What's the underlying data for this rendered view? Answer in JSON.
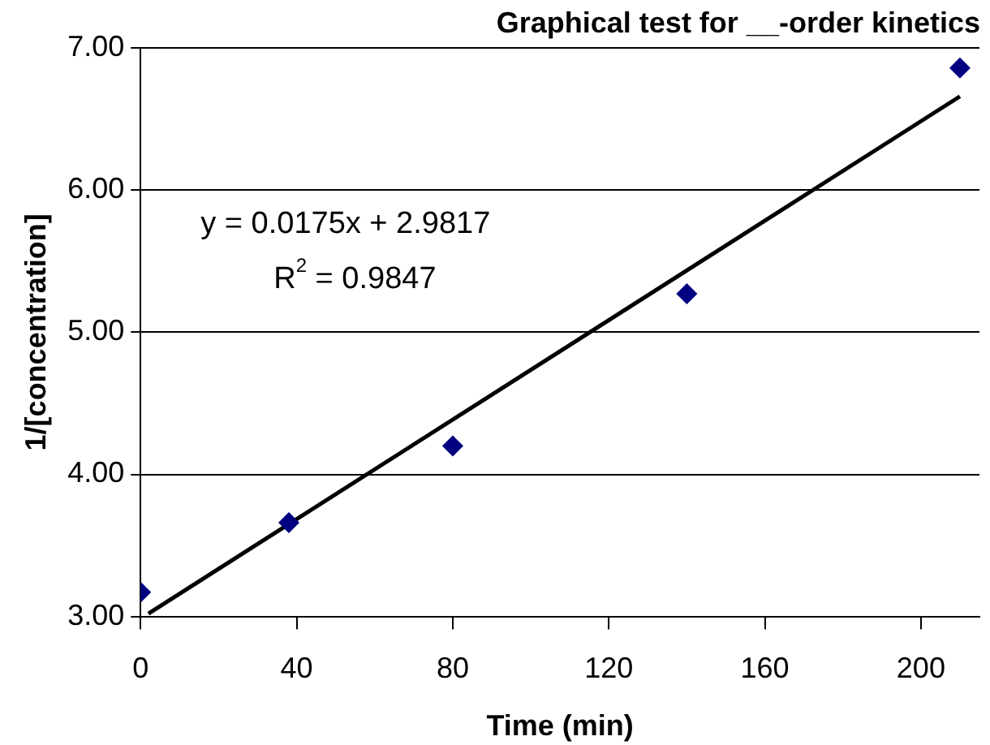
{
  "chart_data": {
    "type": "scatter",
    "title": "Graphical test for __-order kinetics",
    "xlabel": "Time (min)",
    "ylabel": "1/[concentration]",
    "series": [
      {
        "color": "#000080",
        "x": [
          0,
          38,
          80,
          140,
          210
        ],
        "values": [
          3.17,
          3.66,
          4.2,
          5.27,
          6.86
        ],
        "marker": "diamond"
      },
      {
        "type": "line",
        "color": "#000000",
        "x": [
          2,
          210
        ],
        "values": [
          3.02,
          6.66
        ],
        "marker": "none",
        "line_style": "solid"
      }
    ],
    "annotations": [
      "y = 0.0175x + 2.9817",
      "R$^{2}$ = 0.9847"
    ],
    "xlim": [
      0,
      215
    ],
    "xticks": [
      0,
      40,
      80,
      120,
      160,
      200
    ],
    "ylim": [
      3,
      7
    ],
    "yticks": [
      {
        "value": 3,
        "label": "3.00"
      },
      {
        "value": 4,
        "label": "4.00"
      },
      {
        "value": 5,
        "label": "5.00"
      },
      {
        "value": 6,
        "label": "6.00"
      },
      {
        "value": 7,
        "label": "7.00"
      }
    ],
    "grid": "y",
    "legend": false
  }
}
